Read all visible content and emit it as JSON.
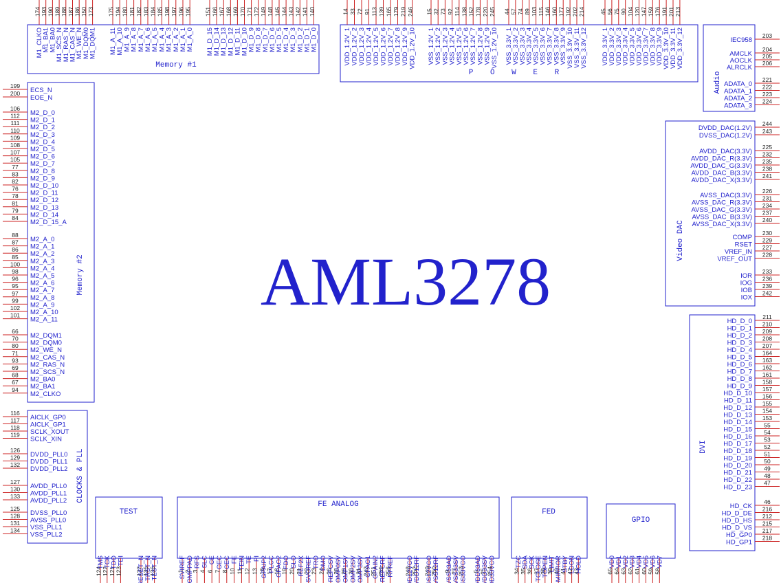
{
  "chip": {
    "name": "AML3278"
  },
  "colors": {
    "border": "#2222cc",
    "pin": "#cc2222",
    "text": "#2222cc",
    "pin_num": "#222222"
  },
  "blocks": {
    "memory1": {
      "title": "Memory #1",
      "groups": [
        [
          [
            "174",
            "M1_CLKO"
          ],
          [
            "193",
            "M1_BA1"
          ],
          [
            "190",
            "M1_BA0"
          ],
          [
            "189",
            "M1_SCS_N"
          ],
          [
            "188",
            "M1_RAS_N"
          ],
          [
            "187",
            "M1_CAS_N"
          ],
          [
            "186",
            "M1_WE_N"
          ],
          [
            "150",
            "M1_DQM0"
          ],
          [
            "173",
            "M1_DQM1"
          ]
        ],
        [
          [
            "175",
            "M1_A_11"
          ],
          [
            "194",
            "M1_A_10"
          ],
          [
            "180",
            "M1_A_9"
          ],
          [
            "181",
            "M1_A_8"
          ],
          [
            "182",
            "M1_A_7"
          ],
          [
            "183",
            "M1_A_6"
          ],
          [
            "184",
            "M1_A_5"
          ],
          [
            "185",
            "M1_A_4"
          ],
          [
            "198",
            "M1_A_3"
          ],
          [
            "197",
            "M1_A_2"
          ],
          [
            "196",
            "M1_A_1"
          ],
          [
            "195",
            "M1_A_0"
          ]
        ],
        [
          [
            "151",
            "M1_D_15"
          ],
          [
            "166",
            "M1_D_14"
          ],
          [
            "167",
            "M1_D_13"
          ],
          [
            "168",
            "M1_D_12"
          ],
          [
            "169",
            "M1_D_11"
          ],
          [
            "170",
            "M1_D_10"
          ],
          [
            "171",
            "M1_D_9"
          ],
          [
            "172",
            "M1_D_8"
          ],
          [
            "149",
            "M1_D_7"
          ],
          [
            "148",
            "M1_D_6"
          ],
          [
            "145",
            "M1_D_5"
          ],
          [
            "144",
            "M1_D_4"
          ],
          [
            "143",
            "M1_D_3"
          ],
          [
            "142",
            "M1_D_2"
          ],
          [
            "141",
            "M1_D_1"
          ],
          [
            "140",
            "M1_D_0"
          ]
        ]
      ]
    },
    "power": {
      "title": "P O W E R",
      "groups": [
        [
          [
            "14",
            "VDD_1.2V_1"
          ],
          [
            "33",
            "VDD_1.2V_2"
          ],
          [
            "72",
            "VDD_1.2V_3"
          ],
          [
            "91",
            "VDD_1.2V_4"
          ],
          [
            "113",
            "VDD_1.2V_5"
          ],
          [
            "139",
            "VDD_1.2V_6"
          ],
          [
            "165",
            "VDD_1.2V_7"
          ],
          [
            "179",
            "VDD_1.2V_8"
          ],
          [
            "219",
            "VDD_1.2V_9"
          ],
          [
            "246",
            "VDD_1.2V_10"
          ]
        ],
        [
          [
            "15",
            "VSS_1.2V_1"
          ],
          [
            "32",
            "VSS_1.2V_2"
          ],
          [
            "73",
            "VSS_1.2V_3"
          ],
          [
            "92",
            "VSS_1.2V_4"
          ],
          [
            "114",
            "VSS_1.2V_5"
          ],
          [
            "138",
            "VSS_1.2V_6"
          ],
          [
            "152",
            "VSS_1.2V_7"
          ],
          [
            "178",
            "VSS_1.2V_8"
          ],
          [
            "220",
            "VSS_1.2V_9"
          ],
          [
            "245",
            "VSS_1.2V_10"
          ]
        ],
        [
          [
            "44",
            "VSS_3.3V_1"
          ],
          [
            "57",
            "VSS_3.3V_2"
          ],
          [
            "74",
            "VSS_3.3V_3"
          ],
          [
            "89",
            "VSS_3.3V_4"
          ],
          [
            "103",
            "VSS_3.3V_5"
          ],
          [
            "115",
            "VSS_3.3V_6"
          ],
          [
            "146",
            "VSS_3.3V_7"
          ],
          [
            "160",
            "VSS_3.3V_8"
          ],
          [
            "177",
            "VSS_3.3V_9"
          ],
          [
            "192",
            "VSS_3.3V_10"
          ],
          [
            "202",
            "VSS_3.3V_11"
          ],
          [
            "214",
            "VSS_3.3V_12"
          ]
        ],
        [
          [
            "45",
            "VDD_3.3V_1"
          ],
          [
            "56",
            "VDD_3.3V_2"
          ],
          [
            "75",
            "VDD_3.3V_3"
          ],
          [
            "90",
            "VDD_3.3V_4"
          ],
          [
            "104",
            "VDD_3.3V_5"
          ],
          [
            "120",
            "VDD_3.3V_6"
          ],
          [
            "147",
            "VDD_3.3V_7"
          ],
          [
            "159",
            "VDD_3.3V_8"
          ],
          [
            "176",
            "VDD_3.3V_9"
          ],
          [
            "191",
            "VDD_3.3V_10"
          ],
          [
            "201",
            "VDD_3.3V_11"
          ],
          [
            "213",
            "VDD_3.3V_12"
          ]
        ]
      ]
    },
    "audio": {
      "title": "Audio",
      "groups": [
        [
          [
            "203",
            "IEC958"
          ]
        ],
        [
          [
            "204",
            "AMCLK"
          ],
          [
            "205",
            "AOCLK"
          ],
          [
            "206",
            "ALRCLK"
          ]
        ],
        [
          [
            "221",
            "ADATA_0"
          ],
          [
            "222",
            "ADATA_1"
          ],
          [
            "223",
            "ADATA_2"
          ],
          [
            "224",
            "ADATA_3"
          ]
        ]
      ]
    },
    "video_dac": {
      "title": "Video DAC",
      "groups": [
        [
          [
            "244",
            "DVDD_DAC(1.2V)"
          ],
          [
            "243",
            "DVSS_DAC(1.2V)"
          ]
        ],
        [
          [
            "225",
            "AVDD_DAC(3.3V)"
          ],
          [
            "232",
            "AVDD_DAC_R(3.3V)"
          ],
          [
            "235",
            "AVDD_DAC_G(3.3V)"
          ],
          [
            "238",
            "AVDD_DAC_B(3.3V)"
          ],
          [
            "241",
            "AVDD_DAC_X(3.3V)"
          ]
        ],
        [
          [
            "226",
            "AVSS_DAC(3.3V)"
          ],
          [
            "231",
            "AVSS_DAC_R(3.3V)"
          ],
          [
            "234",
            "AVSS_DAC_G(3.3V)"
          ],
          [
            "237",
            "AVSS_DAC_B(3.3V)"
          ],
          [
            "240",
            "AVSS_DAC_X(3.3V)"
          ]
        ],
        [
          [
            "230",
            "COMP"
          ],
          [
            "229",
            "RSET"
          ],
          [
            "227",
            "VREF_IN"
          ],
          [
            "228",
            "VREF_OUT"
          ]
        ],
        [
          [
            "233",
            "IOR"
          ],
          [
            "236",
            "IOG"
          ],
          [
            "239",
            "IOB"
          ],
          [
            "242",
            "IOX"
          ]
        ]
      ]
    },
    "dvi": {
      "title": "DVI",
      "groups": [
        [
          [
            "211",
            "HD_D_0"
          ],
          [
            "210",
            "HD_D_1"
          ],
          [
            "209",
            "HD_D_2"
          ],
          [
            "208",
            "HD_D_3"
          ],
          [
            "207",
            "HD_D_4"
          ],
          [
            "164",
            "HD_D_5"
          ],
          [
            "163",
            "HD_D_6"
          ],
          [
            "162",
            "HD_D_7"
          ],
          [
            "161",
            "HD_D_8"
          ],
          [
            "158",
            "HD_D_9"
          ],
          [
            "157",
            "HD_D_10"
          ],
          [
            "156",
            "HD_D_11"
          ],
          [
            "155",
            "HD_D_12"
          ],
          [
            "154",
            "HD_D_13"
          ],
          [
            "153",
            "HD_D_14"
          ],
          [
            "55",
            "HD_D_15"
          ],
          [
            "54",
            "HD_D_16"
          ],
          [
            "53",
            "HD_D_17"
          ],
          [
            "52",
            "HD_D_18"
          ],
          [
            "51",
            "HD_D_19"
          ],
          [
            "50",
            "HD_D_20"
          ],
          [
            "49",
            "HD_D_21"
          ],
          [
            "48",
            "HD_D_22"
          ],
          [
            "47",
            "HD_D_23"
          ]
        ],
        [
          [
            "46",
            "HD_CK"
          ],
          [
            "216",
            "HD_D_DE"
          ],
          [
            "212",
            "HD_D_HS"
          ],
          [
            "215",
            "HD_D_VS"
          ],
          [
            "217",
            "HD_GP0"
          ],
          [
            "218",
            "HD_GP1"
          ]
        ]
      ]
    },
    "memory2": {
      "title": "Memory #2",
      "groups": [
        [
          [
            "199",
            "ECS_N"
          ],
          [
            "200",
            "EOE_N"
          ]
        ],
        [
          [
            "106",
            "M2_D_0"
          ],
          [
            "112",
            "M2_D_1"
          ],
          [
            "111",
            "M2_D_2"
          ],
          [
            "110",
            "M2_D_3"
          ],
          [
            "109",
            "M2_D_4"
          ],
          [
            "108",
            "M2_D_5"
          ],
          [
            "107",
            "M2_D_6"
          ],
          [
            "105",
            "M2_D_7"
          ],
          [
            "77",
            "M2_D_8"
          ],
          [
            "83",
            "M2_D_9"
          ],
          [
            "82",
            "M2_D_10"
          ],
          [
            "76",
            "M2_D_11"
          ],
          [
            "78",
            "M2_D_12"
          ],
          [
            "81",
            "M2_D_13"
          ],
          [
            "79",
            "M2_D_14"
          ],
          [
            "84",
            "M2_D_15_A"
          ]
        ],
        [
          [
            "88",
            "M2_A_0"
          ],
          [
            "87",
            "M2_A_1"
          ],
          [
            "86",
            "M2_A_2"
          ],
          [
            "85",
            "M2_A_3"
          ],
          [
            "100",
            "M2_A_4"
          ],
          [
            "98",
            "M2_A_5"
          ],
          [
            "96",
            "M2_A_6"
          ],
          [
            "95",
            "M2_A_7"
          ],
          [
            "97",
            "M2_A_8"
          ],
          [
            "99",
            "M2_A_9"
          ],
          [
            "102",
            "M2_A_10"
          ],
          [
            "101",
            "M2_A_11"
          ]
        ],
        [
          [
            "66",
            "M2_DQM1"
          ],
          [
            "70",
            "M2_DQM0"
          ],
          [
            "80",
            "M2_WE_N"
          ],
          [
            "71",
            "M2_CAS_N"
          ],
          [
            "93",
            "M2_RAS_N"
          ],
          [
            "69",
            "M2_SCS_N"
          ],
          [
            "68",
            "M2_BA0"
          ],
          [
            "67",
            "M2_BA1"
          ],
          [
            "94",
            "M2_CLKO"
          ]
        ]
      ]
    },
    "clocks": {
      "title": "CLOCKS & PLL",
      "groups": [
        [
          [
            "116",
            "AICLK_GP0"
          ],
          [
            "117",
            "AICLK_GP1"
          ],
          [
            "118",
            "SCLK_XOUT"
          ],
          [
            "119",
            "SCLK_XIN"
          ]
        ],
        [
          [
            "126",
            "DVDD_PLL0"
          ],
          [
            "129",
            "DVDD_PLL1"
          ],
          [
            "132",
            "DVDD_PLL2"
          ]
        ],
        [
          [
            "127",
            "AVDD_PLL0"
          ],
          [
            "130",
            "AVDD_PLL1"
          ],
          [
            "133",
            "AVDD_PLL2"
          ]
        ],
        [
          [
            "125",
            "DVSS_PLL0"
          ],
          [
            "128",
            "AVSS_PLL0"
          ],
          [
            "131",
            "VSS_PLL1"
          ],
          [
            "134",
            "VSS_PLL2"
          ]
        ]
      ]
    },
    "test": {
      "title": "TEST",
      "groups": [
        [
          [
            "124",
            "TMS"
          ],
          [
            "122",
            "TCK"
          ],
          [
            "121",
            "TDO"
          ],
          [
            "123",
            "TDI"
          ]
        ],
        [
          [
            "137",
            "RESET_N"
          ],
          [
            "135",
            "TRST_N"
          ],
          [
            "136",
            "TEST_N"
          ]
        ]
      ]
    },
    "fe_analog": {
      "title": "FE ANALOG",
      "groups": [
        [
          [
            "1",
            "SVIREF"
          ],
          [
            "2",
            "COMPPAD"
          ],
          [
            "3",
            "RFS"
          ],
          [
            "4",
            "SLC"
          ],
          [
            "6",
            "CE"
          ],
          [
            "7",
            "CEC"
          ],
          [
            "8",
            "CEC"
          ],
          [
            "10",
            "FE"
          ],
          [
            "11",
            "TEIN"
          ],
          [
            "12",
            "TE"
          ],
          [
            "13",
            "PI"
          ],
          [
            "16",
            "GPAIP2"
          ],
          [
            "17",
            "PLCC"
          ],
          [
            "18",
            "GPAO2"
          ],
          [
            "19",
            "FDO"
          ],
          [
            "20",
            "SLO"
          ],
          [
            "21",
            "REF2X"
          ],
          [
            "22",
            "SVOREF"
          ],
          [
            "23",
            "TRO"
          ],
          [
            "24",
            "DMO"
          ],
          [
            "26",
            "REFCSV"
          ],
          [
            "28",
            "COMP0SV"
          ],
          [
            "29",
            "COMP1SV"
          ],
          [
            "30",
            "COMP2SV"
          ],
          [
            "31",
            "COMP3SV"
          ],
          [
            "247",
            "GPAO1"
          ],
          [
            "251",
            "GPAIN2"
          ],
          [
            "255",
            "REFCRF"
          ],
          [
            "256",
            "RFREF"
          ]
        ],
        [
          [
            "248",
            "AVDD12VCO"
          ],
          [
            "252",
            "AVDD12RF"
          ]
        ],
        [
          [
            "249",
            "AVSS12VCO"
          ],
          [
            "250",
            "AVSS12RF"
          ]
        ],
        [
          [
            "9",
            "AVSS33AD"
          ],
          [
            "27",
            "AVSS33SV"
          ],
          [
            "253",
            "AVSS33VCO"
          ]
        ],
        [
          [
            "5",
            "AVDD33AD"
          ],
          [
            "25",
            "AVDD33SV"
          ],
          [
            "254",
            "AVDD33VCO"
          ]
        ]
      ]
    },
    "fed": {
      "title": "FED",
      "groups": [
        [
          [
            "34",
            "TZC"
          ],
          [
            "35",
            "SDA"
          ],
          [
            "36",
            "SCK"
          ],
          [
            "37",
            "TCLOSE"
          ],
          [
            "38",
            "TOPEN"
          ],
          [
            "39",
            "LIMIT"
          ],
          [
            "40",
            "MIRROR"
          ],
          [
            "41",
            "STBY"
          ],
          [
            "42",
            "LDON"
          ],
          [
            "43",
            "HOLD"
          ]
        ]
      ]
    },
    "gpio": {
      "title": "GPIO",
      "groups": [
        [
          [
            "65",
            "VD0"
          ],
          [
            "64",
            "VD1"
          ],
          [
            "63",
            "VD2"
          ],
          [
            "62",
            "VD3"
          ],
          [
            "61",
            "VD4"
          ],
          [
            "60",
            "VD5"
          ],
          [
            "59",
            "VD6"
          ],
          [
            "58",
            "VD7"
          ]
        ]
      ]
    }
  }
}
